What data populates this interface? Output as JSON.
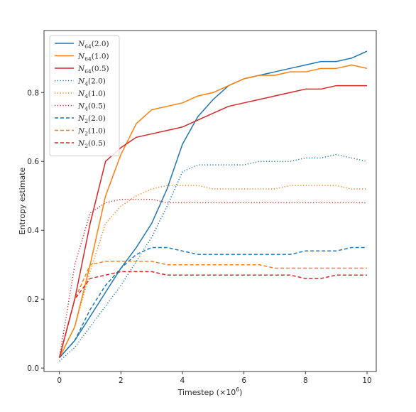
{
  "chart_data": {
    "type": "line",
    "title": "",
    "xlabel": "Timestep (×10",
    "xlabel_sup": "6",
    "xlabel_close": ")",
    "ylabel": "Entropy estimate",
    "xlim": [
      -0.5,
      10.3
    ],
    "ylim": [
      -0.01,
      0.98
    ],
    "xticks": [
      0,
      2,
      4,
      6,
      8,
      10
    ],
    "yticks": [
      0.0,
      0.2,
      0.4,
      0.6,
      0.8
    ],
    "xtick_labels": [
      "0",
      "2",
      "4",
      "6",
      "8",
      "10"
    ],
    "ytick_labels": [
      "0.0",
      "0.2",
      "0.4",
      "0.6",
      "0.8"
    ],
    "grid": false,
    "legend_position": "top-left",
    "series": [
      {
        "name_base": "N",
        "name_sub": "64",
        "name_arg": "(2.0)",
        "color": "#1f77b4",
        "dash": "solid",
        "x": [
          0,
          0.5,
          1,
          1.5,
          2,
          2.5,
          3,
          3.5,
          4,
          4.5,
          5,
          5.5,
          6,
          6.5,
          7,
          7.5,
          8,
          8.5,
          9,
          9.5,
          10
        ],
        "y": [
          0.03,
          0.08,
          0.15,
          0.22,
          0.29,
          0.35,
          0.42,
          0.52,
          0.65,
          0.73,
          0.78,
          0.82,
          0.84,
          0.85,
          0.86,
          0.87,
          0.88,
          0.89,
          0.89,
          0.9,
          0.92
        ]
      },
      {
        "name_base": "N",
        "name_sub": "64",
        "name_arg": "(1.0)",
        "color": "#ff7f0e",
        "dash": "solid",
        "x": [
          0,
          0.5,
          1,
          1.5,
          2,
          2.5,
          3,
          3.5,
          4,
          4.5,
          5,
          5.5,
          6,
          6.5,
          7,
          7.5,
          8,
          8.5,
          9,
          9.5,
          10
        ],
        "y": [
          0.03,
          0.12,
          0.3,
          0.5,
          0.62,
          0.71,
          0.75,
          0.76,
          0.77,
          0.79,
          0.8,
          0.82,
          0.84,
          0.85,
          0.85,
          0.86,
          0.86,
          0.87,
          0.87,
          0.88,
          0.87
        ]
      },
      {
        "name_base": "N",
        "name_sub": "64",
        "name_arg": "(0.5)",
        "color": "#d62728",
        "dash": "solid",
        "x": [
          0,
          0.5,
          1,
          1.5,
          2,
          2.5,
          3,
          3.5,
          4,
          4.5,
          5,
          5.5,
          6,
          6.5,
          7,
          7.5,
          8,
          8.5,
          9,
          9.5,
          10
        ],
        "y": [
          0.03,
          0.2,
          0.42,
          0.6,
          0.64,
          0.67,
          0.68,
          0.69,
          0.7,
          0.72,
          0.74,
          0.76,
          0.77,
          0.78,
          0.79,
          0.8,
          0.81,
          0.81,
          0.82,
          0.82,
          0.82
        ]
      },
      {
        "name_base": "N",
        "name_sub": "4",
        "name_arg": "(2.0)",
        "color": "#1f77b4",
        "dash": "dotted",
        "x": [
          0,
          0.5,
          1,
          1.5,
          2,
          2.5,
          3,
          3.5,
          4,
          4.5,
          5,
          5.5,
          6,
          6.5,
          7,
          7.5,
          8,
          8.5,
          9,
          9.5,
          10
        ],
        "y": [
          0.02,
          0.06,
          0.12,
          0.18,
          0.24,
          0.31,
          0.38,
          0.47,
          0.57,
          0.59,
          0.59,
          0.59,
          0.59,
          0.6,
          0.6,
          0.6,
          0.61,
          0.61,
          0.62,
          0.61,
          0.6
        ]
      },
      {
        "name_base": "N",
        "name_sub": "4",
        "name_arg": "(1.0)",
        "color": "#ff7f0e",
        "dash": "dotted",
        "x": [
          0,
          0.5,
          1,
          1.5,
          2,
          2.5,
          3,
          3.5,
          4,
          4.5,
          5,
          5.5,
          6,
          6.5,
          7,
          7.5,
          8,
          8.5,
          9,
          9.5,
          10
        ],
        "y": [
          0.03,
          0.12,
          0.28,
          0.42,
          0.47,
          0.5,
          0.52,
          0.53,
          0.53,
          0.53,
          0.52,
          0.52,
          0.52,
          0.52,
          0.52,
          0.53,
          0.53,
          0.53,
          0.53,
          0.52,
          0.52
        ]
      },
      {
        "name_base": "N",
        "name_sub": "4",
        "name_arg": "(0.5)",
        "color": "#d62728",
        "dash": "dotted",
        "x": [
          0,
          0.5,
          1,
          1.5,
          2,
          2.5,
          3,
          3.5,
          4,
          4.5,
          5,
          5.5,
          6,
          6.5,
          7,
          7.5,
          8,
          8.5,
          9,
          9.5,
          10
        ],
        "y": [
          0.03,
          0.3,
          0.45,
          0.48,
          0.49,
          0.49,
          0.49,
          0.48,
          0.48,
          0.48,
          0.48,
          0.48,
          0.48,
          0.48,
          0.48,
          0.48,
          0.48,
          0.48,
          0.48,
          0.48,
          0.48
        ]
      },
      {
        "name_base": "N",
        "name_sub": "2",
        "name_arg": "(2.0)",
        "color": "#1f77b4",
        "dash": "dashed",
        "x": [
          0,
          0.5,
          1,
          1.5,
          2,
          2.5,
          3,
          3.5,
          4,
          4.5,
          5,
          5.5,
          6,
          6.5,
          7,
          7.5,
          8,
          8.5,
          9,
          9.5,
          10
        ],
        "y": [
          0.03,
          0.08,
          0.17,
          0.24,
          0.29,
          0.33,
          0.35,
          0.35,
          0.34,
          0.33,
          0.33,
          0.33,
          0.33,
          0.33,
          0.33,
          0.33,
          0.34,
          0.34,
          0.34,
          0.35,
          0.35
        ]
      },
      {
        "name_base": "N",
        "name_sub": "2",
        "name_arg": "(1.0)",
        "color": "#ff7f0e",
        "dash": "dashed",
        "x": [
          0,
          0.5,
          1,
          1.5,
          2,
          2.5,
          3,
          3.5,
          4,
          4.5,
          5,
          5.5,
          6,
          6.5,
          7,
          7.5,
          8,
          8.5,
          9,
          9.5,
          10
        ],
        "y": [
          0.03,
          0.2,
          0.3,
          0.31,
          0.31,
          0.31,
          0.31,
          0.3,
          0.3,
          0.3,
          0.3,
          0.3,
          0.3,
          0.3,
          0.29,
          0.29,
          0.29,
          0.29,
          0.29,
          0.29,
          0.29
        ]
      },
      {
        "name_base": "N",
        "name_sub": "2",
        "name_arg": "(0.5)",
        "color": "#d62728",
        "dash": "dashed",
        "x": [
          0,
          0.5,
          1,
          1.5,
          2,
          2.5,
          3,
          3.5,
          4,
          4.5,
          5,
          5.5,
          6,
          6.5,
          7,
          7.5,
          8,
          8.5,
          9,
          9.5,
          10
        ],
        "y": [
          0.03,
          0.2,
          0.26,
          0.27,
          0.28,
          0.28,
          0.28,
          0.27,
          0.27,
          0.27,
          0.27,
          0.27,
          0.27,
          0.27,
          0.27,
          0.27,
          0.26,
          0.26,
          0.27,
          0.27,
          0.27
        ]
      }
    ]
  }
}
